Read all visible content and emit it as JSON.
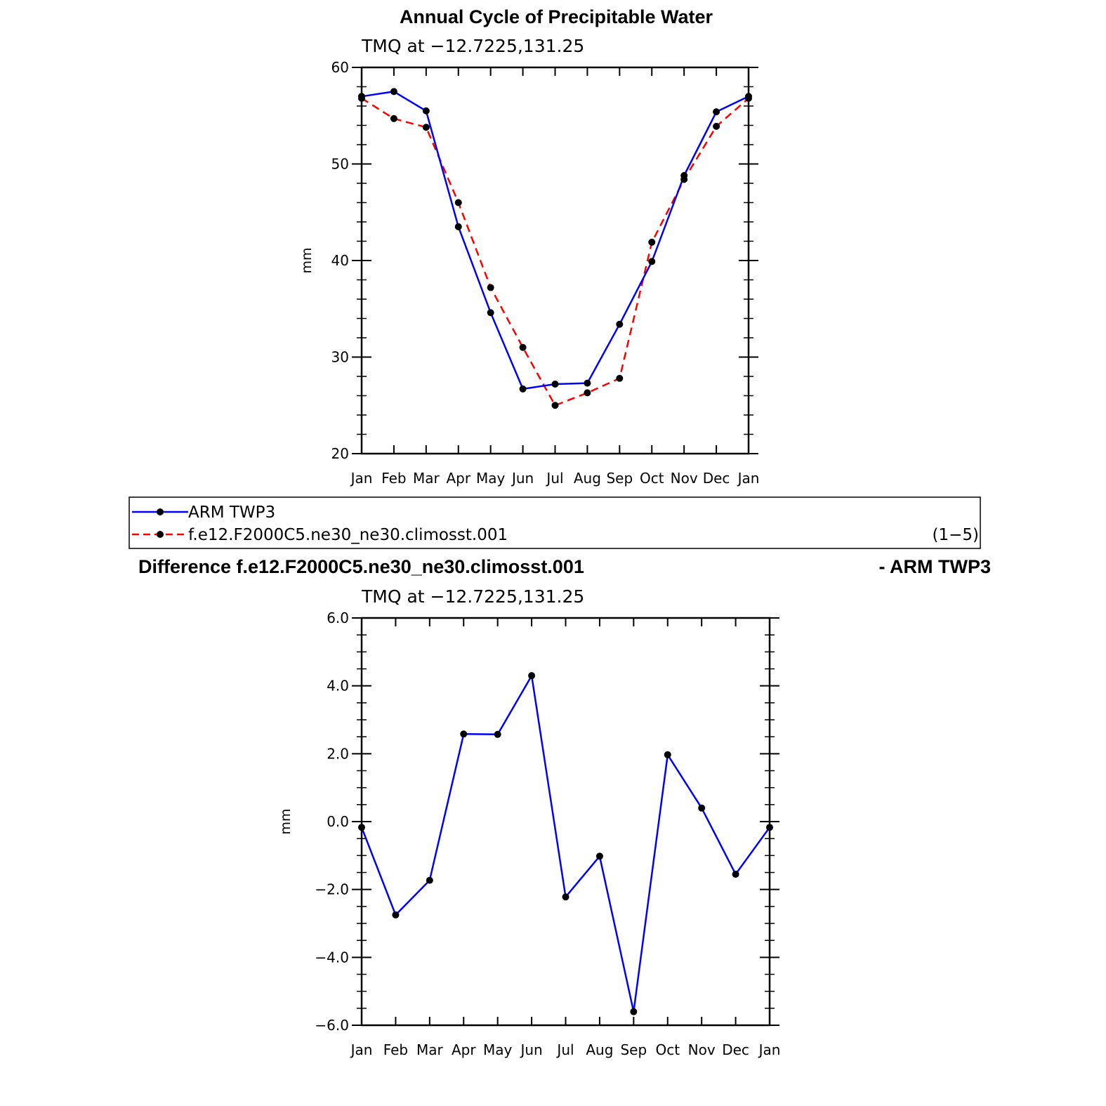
{
  "chart_data": [
    {
      "type": "line",
      "title": "Annual Cycle of Precipitable Water",
      "subtitle": "TMQ at −12.7225,131.25",
      "xlabel": "",
      "ylabel": "mm",
      "categories": [
        "Jan",
        "Feb",
        "Mar",
        "Apr",
        "May",
        "Jun",
        "Jul",
        "Aug",
        "Sep",
        "Oct",
        "Nov",
        "Dec",
        "Jan"
      ],
      "ylim": [
        20,
        60
      ],
      "yticks": [
        "20",
        "30",
        "40",
        "50",
        "60"
      ],
      "grid": false,
      "series": [
        {
          "name": "ARM TWP3",
          "color": "#0000ff",
          "dash": "solid",
          "values": [
            57.0,
            57.5,
            55.5,
            43.5,
            34.6,
            26.7,
            27.2,
            27.3,
            33.4,
            39.9,
            48.8,
            55.4,
            57.0
          ]
        },
        {
          "name": "f.e12.F2000C5.ne30_ne30.climosst.001",
          "color": "#ff0000",
          "dash": "dashed",
          "values": [
            56.8,
            54.7,
            53.8,
            46.0,
            37.2,
            31.0,
            25.0,
            26.3,
            27.8,
            41.9,
            48.4,
            53.9,
            56.8
          ]
        }
      ]
    },
    {
      "type": "line",
      "title_left": "Difference f.e12.F2000C5.ne30_ne30.climosst.001",
      "title_right": "- ARM TWP3",
      "subtitle": "TMQ at −12.7225,131.25",
      "xlabel": "",
      "ylabel": "mm",
      "categories": [
        "Jan",
        "Feb",
        "Mar",
        "Apr",
        "May",
        "Jun",
        "Jul",
        "Aug",
        "Sep",
        "Oct",
        "Nov",
        "Dec",
        "Jan"
      ],
      "ylim": [
        -6,
        6
      ],
      "yticks": [
        "−6.0",
        "−4.0",
        "−2.0",
        "0.0",
        "2.0",
        "4.0",
        "6.0"
      ],
      "grid": false,
      "series": [
        {
          "name": "Difference",
          "color": "#0000ff",
          "dash": "solid",
          "values": [
            -0.17,
            -2.75,
            -1.73,
            2.58,
            2.57,
            4.3,
            -2.22,
            -1.02,
            -5.6,
            1.97,
            0.4,
            -1.55,
            -0.17
          ]
        }
      ]
    }
  ],
  "legend": {
    "entries": [
      "ARM TWP3",
      "f.e12.F2000C5.ne30_ne30.climosst.001"
    ],
    "note": "(1−5)"
  }
}
